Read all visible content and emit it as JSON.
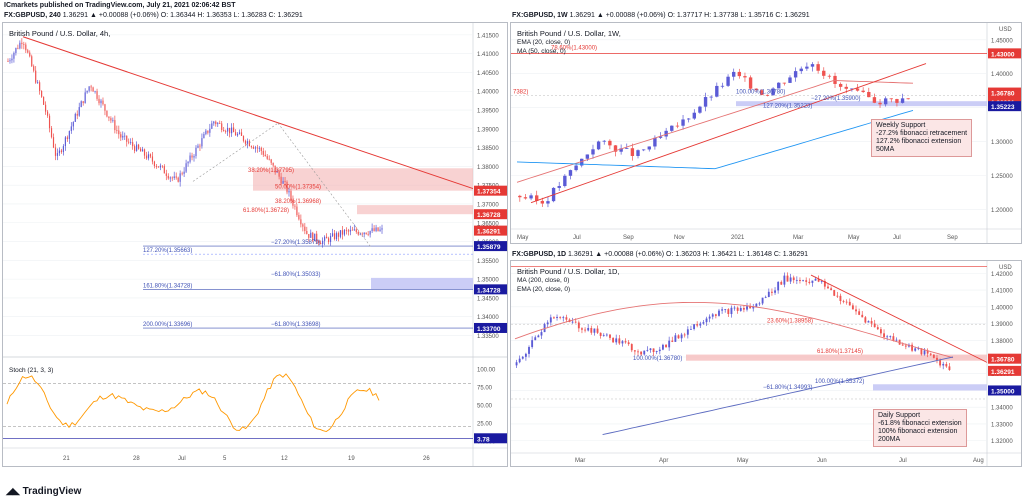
{
  "header": {
    "publisher": "ICmarkets published on TradingView.com, July 21, 2021 02:06:42 BST",
    "left_symbol": "FX:GBPUSD, 240",
    "left_ohlc": "1.36291 ▲ +0.00088 (+0.06%) O: 1.36344 H: 1.36353 L: 1.36283 C: 1.36291",
    "right_top_symbol": "FX:GBPUSD, 1W",
    "right_top_ohlc": "1.36291 ▲ +0.00088 (+0.06%) O: 1.37717 H: 1.37738 L: 1.35716 C: 1.36291",
    "right_bottom_symbol": "FX:GBPUSD, 1D",
    "right_bottom_ohlc": "1.36291 ▲ +0.00088 (+0.06%) O: 1.36203 H: 1.36421 L: 1.36148 C: 1.36291"
  },
  "footer": {
    "brand": "TradingView"
  },
  "colors": {
    "up": "#5b5bd6",
    "down": "#ef5350",
    "trend": "#e53935",
    "ema": "#e57373",
    "ma": "#2196f3",
    "ma200": "#5c6bc0",
    "osc": "#ff9800",
    "highlight": "#1a1aa0"
  },
  "left_chart": {
    "title": "British Pound / U.S. Dollar, 4h,",
    "price_axis": [
      "1.41500",
      "1.41000",
      "1.40500",
      "1.40000",
      "1.39500",
      "1.39000",
      "1.38500",
      "1.38000",
      "1.37500",
      "1.37000",
      "1.36500",
      "1.36000",
      "1.35500",
      "1.35000",
      "1.34500",
      "1.34000",
      "1.33500"
    ],
    "price_tags": [
      {
        "text": "1.37354",
        "price": 1.37354,
        "kind": "red"
      },
      {
        "text": "1.36728",
        "price": 1.36728,
        "kind": "red"
      },
      {
        "text": "1.36291",
        "price": 1.36291,
        "kind": "red"
      },
      {
        "text": "1.35879",
        "price": 1.35879,
        "kind": "blue"
      },
      {
        "text": "1.34728",
        "price": 1.34728,
        "kind": "blue"
      },
      {
        "text": "1.33700",
        "price": 1.337,
        "kind": "blue"
      }
    ],
    "annotations": [
      {
        "text": "38.20%(1.37795)",
        "price": 1.37795
      },
      {
        "text": "50.00%(1.37354)",
        "price": 1.37354
      },
      {
        "text": "38.20%(1.36968)",
        "price": 1.36968
      },
      {
        "text": "61.80%(1.36728)",
        "price": 1.36728
      },
      {
        "text": "−27.20%(1.35879)",
        "price": 1.35879
      },
      {
        "text": "127.20%(1.35663)",
        "price": 1.35663
      },
      {
        "text": "−61.80%(1.35033)",
        "price": 1.35033
      },
      {
        "text": "161.80%(1.34728)",
        "price": 1.34728
      },
      {
        "text": "200.00%(1.33696)",
        "price": 1.33696
      },
      {
        "text": "−61.80%(1.33698)",
        "price": 1.33698
      }
    ],
    "stoch_title": "Stoch (21, 3, 3)",
    "stoch_axis": [
      "100.00",
      "75.00",
      "50.00",
      "25.00",
      "0.0000"
    ],
    "stoch_tag": "3.78",
    "x_axis": [
      "21",
      "28",
      "Jul",
      "5",
      "12",
      "19",
      "26"
    ]
  },
  "right_top_chart": {
    "title": "British Pound / U.S. Dollar, 1W,",
    "legend": [
      "EMA (20, close, 0)",
      "MA (50, close, 0)"
    ],
    "price_axis": [
      "1.45000",
      "1.40000",
      "1.35000",
      "1.30000",
      "1.25000",
      "1.20000"
    ],
    "price_tags": [
      {
        "text": "1.43000",
        "kind": "red"
      },
      {
        "text": "1.36780",
        "kind": "red"
      },
      {
        "text": "1.36291",
        "kind": "red"
      },
      {
        "text": "1.35223",
        "kind": "blue"
      }
    ],
    "annotations": [
      "78.60%(1.43000)",
      "100.00%(1.36780)",
      "−27.20%(1.35900)",
      "127.20%(1.35223)",
      "7382)"
    ],
    "note": [
      "Weekly Support",
      "-27.2% fibonacci retracement",
      "127.2% fibonacci extension",
      "50MA"
    ],
    "x_axis": [
      "May",
      "Jul",
      "Sep",
      "Nov",
      "2021",
      "Mar",
      "May",
      "Jul",
      "Sep"
    ],
    "currency": "USD"
  },
  "right_bottom_chart": {
    "title": "British Pound / U.S. Dollar, 1D,",
    "legend": [
      "MA (200, close, 0)",
      "EMA (20, close, 0)"
    ],
    "price_axis": [
      "1.42000",
      "1.41000",
      "1.40000",
      "1.39000",
      "1.38000",
      "1.37000",
      "1.36000",
      "1.35000",
      "1.34000",
      "1.33000",
      "1.32000"
    ],
    "price_tags": [
      {
        "text": "1.36780",
        "kind": "red"
      },
      {
        "text": "1.36291",
        "kind": "red"
      },
      {
        "text": "1.35000",
        "kind": "blue"
      }
    ],
    "annotations": [
      "23.60%(1.38958)",
      "61.80%(1.37145)",
      "100.00%(1.36780)",
      "100.00%(1.35372)",
      "−61.80%(1.34993)"
    ],
    "note": [
      "Daily Support",
      "-61.8% fibonacci extension",
      "100% fibonacci extension",
      "200MA"
    ],
    "x_axis": [
      "Mar",
      "Apr",
      "May",
      "Jun",
      "Jul",
      "Aug"
    ],
    "currency": "USD"
  },
  "chart_data": [
    {
      "type": "line",
      "title": "British Pound / U.S. Dollar, 4h,",
      "xlabel": "",
      "ylabel": "",
      "categories": [
        "21",
        "28",
        "Jul",
        "5",
        "12",
        "19",
        "26"
      ],
      "series": [
        {
          "values": [
            1.392,
            1.387,
            1.388,
            1.386,
            1.384,
            1.3625,
            null
          ]
        }
      ],
      "ylim": [
        1.333,
        1.4155
      ],
      "grid": true
    },
    {
      "type": "line",
      "title": "British Pound / U.S. Dollar, 1W,",
      "xlabel": "",
      "ylabel": "",
      "categories": [
        "May",
        "Jul",
        "Sep",
        "Nov",
        "2021",
        "Mar",
        "May",
        "Jul",
        "Sep"
      ],
      "series": [
        {
          "values": [
            1.23,
            1.25,
            1.3,
            1.31,
            1.36,
            1.39,
            1.41,
            1.37,
            null
          ]
        }
      ],
      "ylim": [
        1.18,
        1.46
      ],
      "grid": true
    },
    {
      "type": "line",
      "title": "British Pound / U.S. Dollar, 1D,",
      "xlabel": "",
      "ylabel": "",
      "categories": [
        "Mar",
        "Apr",
        "May",
        "Jun",
        "Jul",
        "Aug"
      ],
      "series": [
        {
          "values": [
            1.395,
            1.38,
            1.4,
            1.415,
            1.38,
            null
          ]
        }
      ],
      "ylim": [
        1.315,
        1.425
      ],
      "grid": true
    }
  ]
}
